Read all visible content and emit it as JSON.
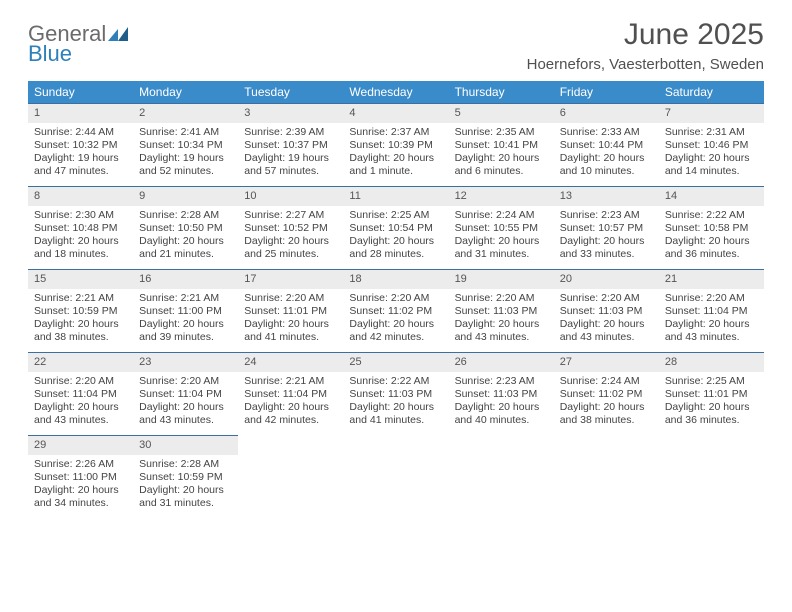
{
  "logo": {
    "line1": "General",
    "line2": "Blue"
  },
  "title": "June 2025",
  "location": "Hoernefors, Vaesterbotten, Sweden",
  "day_headers": [
    "Sunday",
    "Monday",
    "Tuesday",
    "Wednesday",
    "Thursday",
    "Friday",
    "Saturday"
  ],
  "colors": {
    "header_bg": "#3a8bc9",
    "header_text": "#ffffff",
    "daynum_bg": "#ececec",
    "border_top": "#3a6fa0",
    "text": "#444444",
    "title_text": "#505050"
  },
  "weeks": [
    [
      {
        "n": "1",
        "sr": "Sunrise: 2:44 AM",
        "ss": "Sunset: 10:32 PM",
        "dl": "Daylight: 19 hours and 47 minutes."
      },
      {
        "n": "2",
        "sr": "Sunrise: 2:41 AM",
        "ss": "Sunset: 10:34 PM",
        "dl": "Daylight: 19 hours and 52 minutes."
      },
      {
        "n": "3",
        "sr": "Sunrise: 2:39 AM",
        "ss": "Sunset: 10:37 PM",
        "dl": "Daylight: 19 hours and 57 minutes."
      },
      {
        "n": "4",
        "sr": "Sunrise: 2:37 AM",
        "ss": "Sunset: 10:39 PM",
        "dl": "Daylight: 20 hours and 1 minute."
      },
      {
        "n": "5",
        "sr": "Sunrise: 2:35 AM",
        "ss": "Sunset: 10:41 PM",
        "dl": "Daylight: 20 hours and 6 minutes."
      },
      {
        "n": "6",
        "sr": "Sunrise: 2:33 AM",
        "ss": "Sunset: 10:44 PM",
        "dl": "Daylight: 20 hours and 10 minutes."
      },
      {
        "n": "7",
        "sr": "Sunrise: 2:31 AM",
        "ss": "Sunset: 10:46 PM",
        "dl": "Daylight: 20 hours and 14 minutes."
      }
    ],
    [
      {
        "n": "8",
        "sr": "Sunrise: 2:30 AM",
        "ss": "Sunset: 10:48 PM",
        "dl": "Daylight: 20 hours and 18 minutes."
      },
      {
        "n": "9",
        "sr": "Sunrise: 2:28 AM",
        "ss": "Sunset: 10:50 PM",
        "dl": "Daylight: 20 hours and 21 minutes."
      },
      {
        "n": "10",
        "sr": "Sunrise: 2:27 AM",
        "ss": "Sunset: 10:52 PM",
        "dl": "Daylight: 20 hours and 25 minutes."
      },
      {
        "n": "11",
        "sr": "Sunrise: 2:25 AM",
        "ss": "Sunset: 10:54 PM",
        "dl": "Daylight: 20 hours and 28 minutes."
      },
      {
        "n": "12",
        "sr": "Sunrise: 2:24 AM",
        "ss": "Sunset: 10:55 PM",
        "dl": "Daylight: 20 hours and 31 minutes."
      },
      {
        "n": "13",
        "sr": "Sunrise: 2:23 AM",
        "ss": "Sunset: 10:57 PM",
        "dl": "Daylight: 20 hours and 33 minutes."
      },
      {
        "n": "14",
        "sr": "Sunrise: 2:22 AM",
        "ss": "Sunset: 10:58 PM",
        "dl": "Daylight: 20 hours and 36 minutes."
      }
    ],
    [
      {
        "n": "15",
        "sr": "Sunrise: 2:21 AM",
        "ss": "Sunset: 10:59 PM",
        "dl": "Daylight: 20 hours and 38 minutes."
      },
      {
        "n": "16",
        "sr": "Sunrise: 2:21 AM",
        "ss": "Sunset: 11:00 PM",
        "dl": "Daylight: 20 hours and 39 minutes."
      },
      {
        "n": "17",
        "sr": "Sunrise: 2:20 AM",
        "ss": "Sunset: 11:01 PM",
        "dl": "Daylight: 20 hours and 41 minutes."
      },
      {
        "n": "18",
        "sr": "Sunrise: 2:20 AM",
        "ss": "Sunset: 11:02 PM",
        "dl": "Daylight: 20 hours and 42 minutes."
      },
      {
        "n": "19",
        "sr": "Sunrise: 2:20 AM",
        "ss": "Sunset: 11:03 PM",
        "dl": "Daylight: 20 hours and 43 minutes."
      },
      {
        "n": "20",
        "sr": "Sunrise: 2:20 AM",
        "ss": "Sunset: 11:03 PM",
        "dl": "Daylight: 20 hours and 43 minutes."
      },
      {
        "n": "21",
        "sr": "Sunrise: 2:20 AM",
        "ss": "Sunset: 11:04 PM",
        "dl": "Daylight: 20 hours and 43 minutes."
      }
    ],
    [
      {
        "n": "22",
        "sr": "Sunrise: 2:20 AM",
        "ss": "Sunset: 11:04 PM",
        "dl": "Daylight: 20 hours and 43 minutes."
      },
      {
        "n": "23",
        "sr": "Sunrise: 2:20 AM",
        "ss": "Sunset: 11:04 PM",
        "dl": "Daylight: 20 hours and 43 minutes."
      },
      {
        "n": "24",
        "sr": "Sunrise: 2:21 AM",
        "ss": "Sunset: 11:04 PM",
        "dl": "Daylight: 20 hours and 42 minutes."
      },
      {
        "n": "25",
        "sr": "Sunrise: 2:22 AM",
        "ss": "Sunset: 11:03 PM",
        "dl": "Daylight: 20 hours and 41 minutes."
      },
      {
        "n": "26",
        "sr": "Sunrise: 2:23 AM",
        "ss": "Sunset: 11:03 PM",
        "dl": "Daylight: 20 hours and 40 minutes."
      },
      {
        "n": "27",
        "sr": "Sunrise: 2:24 AM",
        "ss": "Sunset: 11:02 PM",
        "dl": "Daylight: 20 hours and 38 minutes."
      },
      {
        "n": "28",
        "sr": "Sunrise: 2:25 AM",
        "ss": "Sunset: 11:01 PM",
        "dl": "Daylight: 20 hours and 36 minutes."
      }
    ],
    [
      {
        "n": "29",
        "sr": "Sunrise: 2:26 AM",
        "ss": "Sunset: 11:00 PM",
        "dl": "Daylight: 20 hours and 34 minutes."
      },
      {
        "n": "30",
        "sr": "Sunrise: 2:28 AM",
        "ss": "Sunset: 10:59 PM",
        "dl": "Daylight: 20 hours and 31 minutes."
      },
      null,
      null,
      null,
      null,
      null
    ]
  ]
}
